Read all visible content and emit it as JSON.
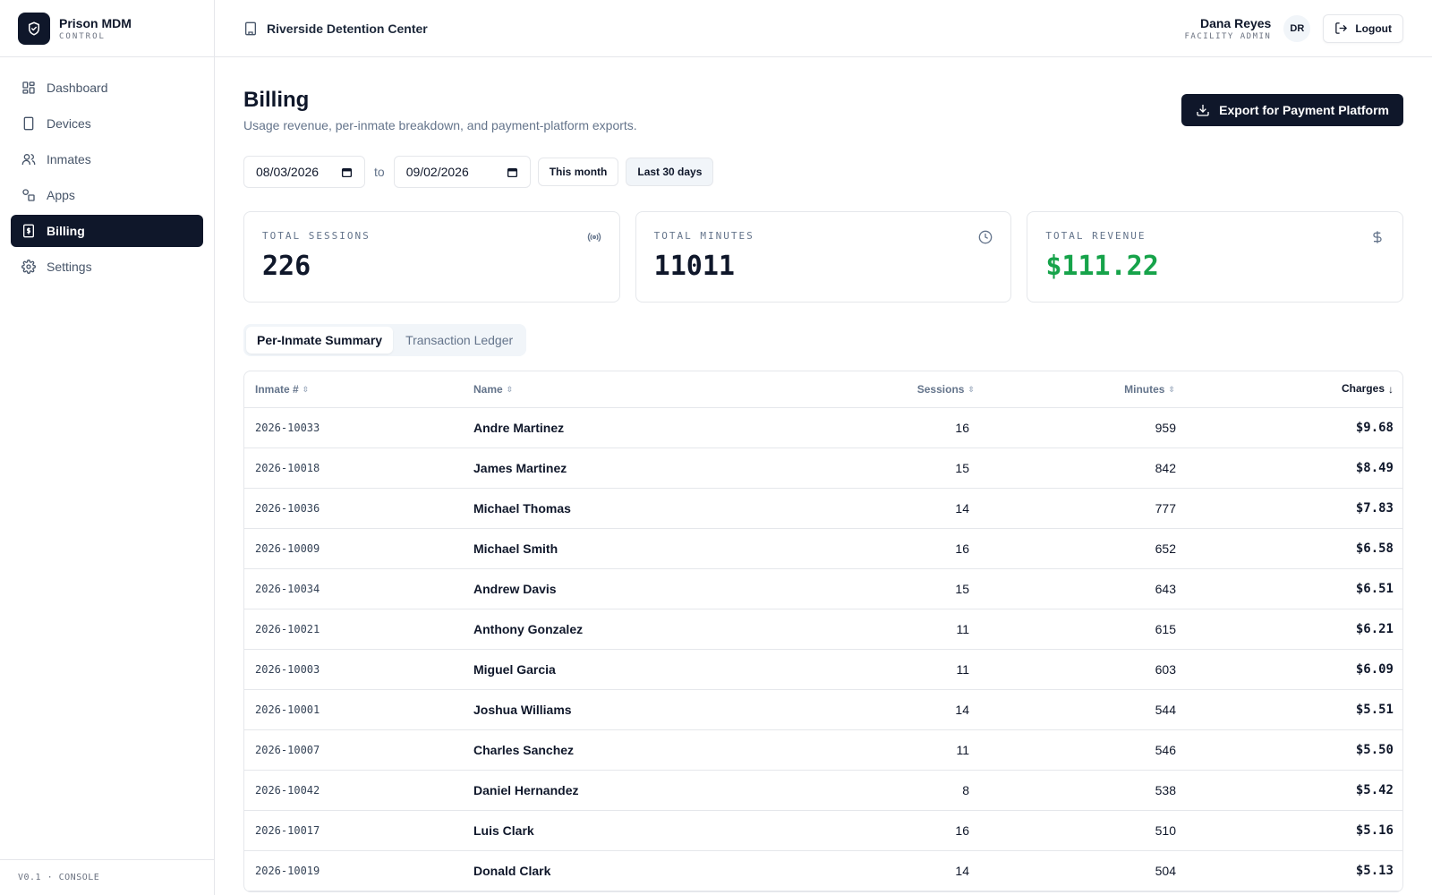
{
  "brand": {
    "name": "Prison MDM",
    "sub": "CONTROL"
  },
  "sidebar": {
    "items": [
      {
        "label": "Dashboard",
        "icon": "layout-dashboard-icon",
        "active": false
      },
      {
        "label": "Devices",
        "icon": "tablet-icon",
        "active": false
      },
      {
        "label": "Inmates",
        "icon": "users-icon",
        "active": false
      },
      {
        "label": "Apps",
        "icon": "shapes-icon",
        "active": false
      },
      {
        "label": "Billing",
        "icon": "receipt-dollar-icon",
        "active": true
      },
      {
        "label": "Settings",
        "icon": "gear-icon",
        "active": false
      }
    ],
    "footer": "V0.1 · CONSOLE"
  },
  "topbar": {
    "facility": "Riverside Detention Center",
    "user_name": "Dana Reyes",
    "user_role": "FACILITY ADMIN",
    "avatar_initials": "DR",
    "logout_label": "Logout"
  },
  "page": {
    "title": "Billing",
    "subtitle": "Usage revenue, per-inmate breakdown, and payment-platform exports.",
    "export_label": "Export for Payment Platform"
  },
  "filters": {
    "from_date": "08/03/2026",
    "to_label": "to",
    "to_date": "09/02/2026",
    "this_month_label": "This month",
    "last_30_label": "Last 30 days"
  },
  "stats": [
    {
      "label": "TOTAL SESSIONS",
      "value": "226",
      "icon": "broadcast-icon"
    },
    {
      "label": "TOTAL MINUTES",
      "value": "11011",
      "icon": "clock-icon"
    },
    {
      "label": "TOTAL REVENUE",
      "value": "$111.22",
      "icon": "dollar-icon",
      "color": "#16a34a"
    }
  ],
  "tabs": [
    {
      "label": "Per-Inmate Summary",
      "active": true
    },
    {
      "label": "Transaction Ledger",
      "active": false
    }
  ],
  "table": {
    "columns": [
      "Inmate #",
      "Name",
      "Sessions",
      "Minutes",
      "Charges"
    ],
    "sort_column": "Charges",
    "sort_direction": "desc",
    "rows": [
      {
        "id": "2026-10033",
        "name": "Andre Martinez",
        "sessions": "16",
        "minutes": "959",
        "charges": "$9.68"
      },
      {
        "id": "2026-10018",
        "name": "James Martinez",
        "sessions": "15",
        "minutes": "842",
        "charges": "$8.49"
      },
      {
        "id": "2026-10036",
        "name": "Michael Thomas",
        "sessions": "14",
        "minutes": "777",
        "charges": "$7.83"
      },
      {
        "id": "2026-10009",
        "name": "Michael Smith",
        "sessions": "16",
        "minutes": "652",
        "charges": "$6.58"
      },
      {
        "id": "2026-10034",
        "name": "Andrew Davis",
        "sessions": "15",
        "minutes": "643",
        "charges": "$6.51"
      },
      {
        "id": "2026-10021",
        "name": "Anthony Gonzalez",
        "sessions": "11",
        "minutes": "615",
        "charges": "$6.21"
      },
      {
        "id": "2026-10003",
        "name": "Miguel Garcia",
        "sessions": "11",
        "minutes": "603",
        "charges": "$6.09"
      },
      {
        "id": "2026-10001",
        "name": "Joshua Williams",
        "sessions": "14",
        "minutes": "544",
        "charges": "$5.51"
      },
      {
        "id": "2026-10007",
        "name": "Charles Sanchez",
        "sessions": "11",
        "minutes": "546",
        "charges": "$5.50"
      },
      {
        "id": "2026-10042",
        "name": "Daniel Hernandez",
        "sessions": "8",
        "minutes": "538",
        "charges": "$5.42"
      },
      {
        "id": "2026-10017",
        "name": "Luis Clark",
        "sessions": "16",
        "minutes": "510",
        "charges": "$5.16"
      },
      {
        "id": "2026-10019",
        "name": "Donald Clark",
        "sessions": "14",
        "minutes": "504",
        "charges": "$5.13"
      }
    ]
  }
}
